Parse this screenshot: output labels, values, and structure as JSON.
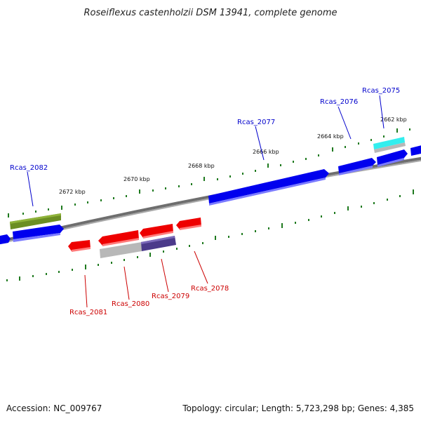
{
  "title": "Roseiflexus castenholzii DSM 13941, complete genome",
  "accession": "Accession: NC_009767",
  "topology": "Topology: circular; Length: 5,723,298 bp; Genes: 4,385",
  "colors": {
    "backbone": "#808080",
    "tick": "#1f7a1f",
    "forward_gene": "#0000ee",
    "reverse_gene": "#ee0000",
    "highlight_cyan": "#33eeee",
    "highlight_olive": "#6b8e23",
    "highlight_purple": "#4b3a8a",
    "pseudo_gray": "#b8b8b8",
    "label_blue": "#0000cc",
    "label_red": "#cc0000"
  },
  "position_labels": [
    "2672 kbp",
    "2670 kbp",
    "2668 kbp",
    "2666 kbp",
    "2664 kbp",
    "2662 kbp"
  ],
  "genes_top": [
    {
      "label": "Rcas_2082",
      "icon": "gene-arrow"
    },
    {
      "label": "Rcas_2077",
      "icon": "gene-arrow"
    },
    {
      "label": "Rcas_2076",
      "icon": "gene-arrow"
    },
    {
      "label": "Rcas_2075",
      "icon": "gene-arrow"
    }
  ],
  "genes_bottom": [
    {
      "label": "Rcas_2081",
      "icon": "gene-arrow"
    },
    {
      "label": "Rcas_2080",
      "icon": "gene-arrow"
    },
    {
      "label": "Rcas_2079",
      "icon": "gene-arrow"
    },
    {
      "label": "Rcas_2078",
      "icon": "gene-arrow"
    }
  ]
}
